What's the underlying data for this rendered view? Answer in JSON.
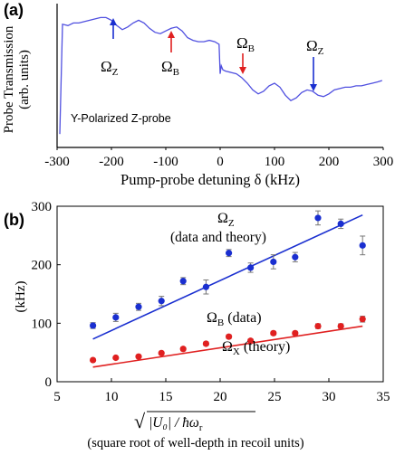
{
  "panel_a": {
    "label": "(a)",
    "ylabel_line1": "Probe Transmission",
    "ylabel_line2": "(arb. units)",
    "xlabel": "Pump-probe detuning δ (kHz)",
    "inset_text": "Y-Polarized Z-probe",
    "arrow_labels": {
      "oz_left": {
        "sym": "Ω",
        "sub": "Z"
      },
      "ob_left": {
        "sym": "Ω",
        "sub": "B"
      },
      "ob_right": {
        "sym": "Ω",
        "sub": "B"
      },
      "oz_right": {
        "sym": "Ω",
        "sub": "Z"
      }
    },
    "colors": {
      "curve": "#5050e0",
      "blue_arrow": "#1a2fd0",
      "red_arrow": "#e02020"
    }
  },
  "panel_b": {
    "label": "(b)",
    "ylabel": "(kHz)",
    "xlabel_symbol": "√",
    "xlabel_formula": "|U₀| / ħω",
    "xlabel_formula_sub": "r",
    "xlabel_desc": "(square root of well-depth in recoil units)",
    "annotations": {
      "oz": {
        "sym": "Ω",
        "sub": "Z",
        "rest": "(data and theory)"
      },
      "ob": {
        "sym": "Ω",
        "sub": "B",
        "rest": " (data)"
      },
      "ox": {
        "sym": "Ω",
        "sub": "X",
        "rest": " (theory)"
      }
    },
    "colors": {
      "blue": "#1a2fd0",
      "red": "#e02020"
    }
  },
  "chart_data": [
    {
      "type": "line",
      "title": "",
      "xlabel": "Pump-probe detuning δ (kHz)",
      "ylabel": "Probe Transmission (arb. units)",
      "xlim": [
        -300,
        300
      ],
      "ylim": [
        0,
        1
      ],
      "x_ticks": [
        -300,
        -200,
        -100,
        0,
        100,
        200,
        300
      ],
      "x_tick_labels": [
        "-300",
        "-200",
        "-100",
        "0",
        "100",
        "200",
        "300"
      ],
      "series": [
        {
          "x": [
            -295,
            -290,
            -280,
            -270,
            -260,
            -250,
            -240,
            -230,
            -220,
            -210,
            -200,
            -190,
            -180,
            -170,
            -160,
            -150,
            -140,
            -130,
            -120,
            -110,
            -100,
            -90,
            -80,
            -70,
            -60,
            -50,
            -40,
            -30,
            -20,
            -10,
            -2,
            0,
            2,
            5,
            10,
            20,
            30,
            40,
            50,
            60,
            70,
            80,
            90,
            100,
            110,
            120,
            130,
            140,
            150,
            160,
            170,
            180,
            190,
            200,
            210,
            220,
            230,
            240,
            250,
            260,
            270,
            280,
            290,
            298
          ],
          "y": [
            0.1,
            0.92,
            0.91,
            0.93,
            0.93,
            0.94,
            0.95,
            0.96,
            0.97,
            0.97,
            0.95,
            0.91,
            0.88,
            0.9,
            0.93,
            0.95,
            0.93,
            0.89,
            0.86,
            0.85,
            0.87,
            0.89,
            0.9,
            0.87,
            0.82,
            0.8,
            0.79,
            0.79,
            0.8,
            0.79,
            0.77,
            0.55,
            0.61,
            0.58,
            0.57,
            0.56,
            0.55,
            0.52,
            0.48,
            0.43,
            0.4,
            0.42,
            0.46,
            0.48,
            0.45,
            0.39,
            0.35,
            0.37,
            0.41,
            0.43,
            0.42,
            0.39,
            0.38,
            0.4,
            0.43,
            0.44,
            0.45,
            0.45,
            0.46,
            0.46,
            0.47,
            0.48,
            0.49,
            0.5
          ]
        }
      ],
      "arrows": [
        {
          "label": "ΩZ",
          "x": -182,
          "color": "blue"
        },
        {
          "label": "ΩB",
          "x": -70,
          "color": "red"
        },
        {
          "label": "ΩB",
          "x": 58,
          "color": "red"
        },
        {
          "label": "ΩZ",
          "x": 180,
          "color": "blue"
        }
      ]
    },
    {
      "type": "scatter",
      "title": "",
      "xlabel": "√(|U0|/ħωr) (square root of well-depth in recoil units)",
      "ylabel": "(kHz)",
      "xlim": [
        5,
        35
      ],
      "ylim": [
        0,
        300
      ],
      "x_ticks": [
        5,
        10,
        15,
        20,
        25,
        30,
        35
      ],
      "y_ticks": [
        0,
        100,
        200,
        300
      ],
      "x_tick_labels": [
        "5",
        "10",
        "15",
        "20",
        "25",
        "30",
        "35"
      ],
      "y_tick_labels": [
        "0",
        "100",
        "200",
        "300"
      ],
      "series": [
        {
          "label": "ΩZ (data)",
          "color": "blue",
          "x": [
            8.3,
            10.4,
            12.5,
            14.6,
            16.6,
            18.7,
            20.8,
            22.8,
            24.9,
            26.9,
            29.0,
            31.1,
            33.1
          ],
          "y": [
            96,
            110,
            128,
            138,
            172,
            162,
            220,
            195,
            205,
            213,
            280,
            270,
            233
          ],
          "err": [
            5,
            7,
            6,
            8,
            6,
            12,
            6,
            8,
            12,
            8,
            12,
            8,
            16
          ]
        },
        {
          "label": "ΩB (data)",
          "color": "red",
          "x": [
            8.3,
            10.4,
            12.5,
            14.6,
            16.6,
            18.7,
            20.8,
            22.8,
            24.9,
            26.9,
            29.0,
            31.1,
            33.1
          ],
          "y": [
            37,
            41,
            43,
            49,
            56,
            65,
            77,
            70,
            83,
            83,
            95,
            95,
            107
          ],
          "err": [
            2,
            2,
            2,
            2,
            3,
            3,
            3,
            3,
            3,
            3,
            4,
            4,
            5
          ]
        },
        {
          "label": "ΩZ (theory)",
          "color": "blue",
          "type": "line",
          "x": [
            8.3,
            33.1
          ],
          "y": [
            73,
            285
          ]
        },
        {
          "label": "ΩX (theory)",
          "color": "red",
          "type": "line",
          "x": [
            8.3,
            33.1
          ],
          "y": [
            25,
            95
          ]
        }
      ]
    }
  ]
}
